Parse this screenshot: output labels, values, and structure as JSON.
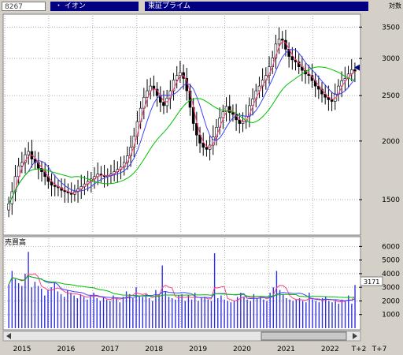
{
  "header": {
    "code": "8267",
    "name": "・ イオン",
    "market": "東証プライム",
    "scale_label": "対数"
  },
  "colors": {
    "candle_up": "#ffffff",
    "candle_down": "#000000",
    "ma_short": "#ff4080",
    "ma_mid": "#4040ff",
    "ma_long": "#00c000",
    "volume_bar": "#3030e0",
    "current_price_marker": "#000080"
  },
  "chart_data": [
    {
      "type": "candlestick",
      "title": "",
      "scale": "log",
      "y_ticks": [
        1500,
        2000,
        2500,
        3000,
        3500
      ],
      "ylim": [
        1270,
        3700
      ],
      "x_ticks": [
        "2015",
        "2016",
        "2017",
        "2018",
        "2019",
        "2020",
        "2021",
        "2022",
        "T+2",
        "T+7"
      ],
      "x_tick_positions_year": [
        2015,
        2016,
        2017,
        2018,
        2019,
        2020,
        2021,
        2022,
        2022.92,
        2023.0
      ],
      "xlim": [
        2015.0,
        2023.05
      ],
      "current_marker_value": 2870,
      "closes": [
        1470,
        1560,
        1680,
        1770,
        1800,
        1870,
        1900,
        1830,
        1800,
        1750,
        1720,
        1680,
        1640,
        1610,
        1600,
        1590,
        1570,
        1560,
        1550,
        1540,
        1560,
        1580,
        1600,
        1620,
        1640,
        1660,
        1680,
        1700,
        1690,
        1680,
        1690,
        1700,
        1720,
        1740,
        1760,
        1800,
        1860,
        1940,
        2050,
        2200,
        2350,
        2480,
        2560,
        2620,
        2580,
        2500,
        2420,
        2380,
        2470,
        2560,
        2700,
        2760,
        2800,
        2720,
        2560,
        2360,
        2180,
        2060,
        1980,
        1940,
        1920,
        1960,
        2040,
        2140,
        2240,
        2310,
        2370,
        2300,
        2280,
        2220,
        2180,
        2200,
        2260,
        2380,
        2460,
        2560,
        2620,
        2700,
        2760,
        2880,
        3010,
        3220,
        3300,
        3280,
        3140,
        3030,
        2980,
        2950,
        2880,
        2830,
        2780,
        2760,
        2690,
        2620,
        2580,
        2520,
        2480,
        2450,
        2430,
        2520,
        2620,
        2690,
        2720,
        2780,
        2840,
        2820
      ]
    },
    {
      "type": "bar",
      "title": "売買高",
      "y_ticks": [
        1000,
        2000,
        3000,
        4000,
        5000,
        6000
      ],
      "ylim": [
        0,
        6600
      ],
      "current_value_label": "3171",
      "values": [
        3200,
        4200,
        3600,
        3300,
        3100,
        4000,
        5600,
        3000,
        3400,
        3100,
        2900,
        2400,
        2800,
        3000,
        3300,
        2700,
        2500,
        2300,
        2800,
        2600,
        2400,
        2200,
        2500,
        2300,
        2100,
        2400,
        2600,
        2200,
        2000,
        2300,
        2100,
        2000,
        2400,
        2200,
        1900,
        2300,
        2700,
        2500,
        2200,
        3000,
        2400,
        2300,
        2500,
        2200,
        2000,
        2800,
        2500,
        4600,
        2700,
        2300,
        2200,
        2100,
        2400,
        2500,
        2000,
        2400,
        2100,
        2600,
        2000,
        2200,
        2300,
        2100,
        2000,
        5500,
        2200,
        2400,
        2100,
        2000,
        1900,
        2000,
        2300,
        2600,
        2300,
        2100,
        2000,
        2500,
        2200,
        2300,
        2100,
        2000,
        2600,
        3000,
        4200,
        2800,
        2500,
        2200,
        2100,
        2000,
        2100,
        2200,
        2000,
        1900,
        2600,
        2100,
        2000,
        1900,
        2200,
        2300,
        2000,
        1900,
        2000,
        1800,
        2100,
        2000,
        2400,
        1800,
        3171
      ]
    }
  ]
}
